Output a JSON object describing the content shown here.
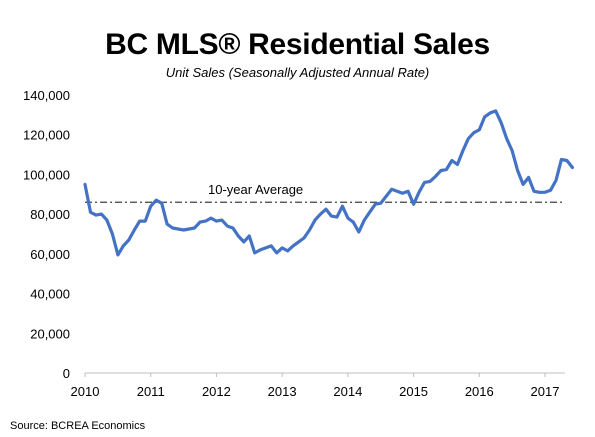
{
  "chart_data": {
    "type": "line",
    "title": "BC MLS® Residential Sales",
    "subtitle": "Unit Sales (Seasonally Adjusted Annual Rate)",
    "source": "Source: BCREA Economics",
    "xlabel": "",
    "ylabel": "",
    "xlim": [
      2010,
      2017.75
    ],
    "ylim": [
      0,
      140000
    ],
    "x_ticks": [
      "2010",
      "2011",
      "2012",
      "2013",
      "2014",
      "2015",
      "2016",
      "2017"
    ],
    "y_ticks": [
      "0",
      "20,000",
      "40,000",
      "60,000",
      "80,000",
      "100,000",
      "120,000",
      "140,000"
    ],
    "grid": false,
    "legend": "none",
    "colors": {
      "series": "#4472C4",
      "average": "#404040"
    },
    "reference_line": {
      "label": "10-year Average",
      "value": 86000
    },
    "series": [
      {
        "values": [
          [
            2010.0,
            95000
          ],
          [
            2010.083,
            81000
          ],
          [
            2010.167,
            79500
          ],
          [
            2010.25,
            80000
          ],
          [
            2010.333,
            77000
          ],
          [
            2010.417,
            70000
          ],
          [
            2010.5,
            59500
          ],
          [
            2010.583,
            64000
          ],
          [
            2010.667,
            67000
          ],
          [
            2010.75,
            72000
          ],
          [
            2010.833,
            76500
          ],
          [
            2010.917,
            76500
          ],
          [
            2011.0,
            84000
          ],
          [
            2011.083,
            87000
          ],
          [
            2011.167,
            85500
          ],
          [
            2011.25,
            75000
          ],
          [
            2011.333,
            73000
          ],
          [
            2011.417,
            72500
          ],
          [
            2011.5,
            72000
          ],
          [
            2011.583,
            72500
          ],
          [
            2011.667,
            73000
          ],
          [
            2011.75,
            76000
          ],
          [
            2011.833,
            76500
          ],
          [
            2011.917,
            78000
          ],
          [
            2012.0,
            76500
          ],
          [
            2012.083,
            77000
          ],
          [
            2012.167,
            74000
          ],
          [
            2012.25,
            73000
          ],
          [
            2012.333,
            69000
          ],
          [
            2012.417,
            66000
          ],
          [
            2012.5,
            69000
          ],
          [
            2012.583,
            60500
          ],
          [
            2012.667,
            62000
          ],
          [
            2012.75,
            63000
          ],
          [
            2012.833,
            64000
          ],
          [
            2012.917,
            60500
          ],
          [
            2013.0,
            63000
          ],
          [
            2013.083,
            61500
          ],
          [
            2013.167,
            64000
          ],
          [
            2013.25,
            66000
          ],
          [
            2013.333,
            68000
          ],
          [
            2013.417,
            72000
          ],
          [
            2013.5,
            77000
          ],
          [
            2013.583,
            80000
          ],
          [
            2013.667,
            82500
          ],
          [
            2013.75,
            79000
          ],
          [
            2013.833,
            78500
          ],
          [
            2013.917,
            84000
          ],
          [
            2014.0,
            78000
          ],
          [
            2014.083,
            76000
          ],
          [
            2014.167,
            71000
          ],
          [
            2014.25,
            77000
          ],
          [
            2014.333,
            81000
          ],
          [
            2014.417,
            85000
          ],
          [
            2014.5,
            85500
          ],
          [
            2014.583,
            89000
          ],
          [
            2014.667,
            92500
          ],
          [
            2014.75,
            91500
          ],
          [
            2014.833,
            90500
          ],
          [
            2014.917,
            91500
          ],
          [
            2015.0,
            85000
          ],
          [
            2015.083,
            91000
          ],
          [
            2015.167,
            96000
          ],
          [
            2015.25,
            96500
          ],
          [
            2015.333,
            99000
          ],
          [
            2015.417,
            102000
          ],
          [
            2015.5,
            102500
          ],
          [
            2015.583,
            107000
          ],
          [
            2015.667,
            105000
          ],
          [
            2015.75,
            112000
          ],
          [
            2015.833,
            118000
          ],
          [
            2015.917,
            121000
          ],
          [
            2016.0,
            122500
          ],
          [
            2016.083,
            129000
          ],
          [
            2016.167,
            131000
          ],
          [
            2016.25,
            132000
          ],
          [
            2016.333,
            126000
          ],
          [
            2016.417,
            118000
          ],
          [
            2016.5,
            112000
          ],
          [
            2016.583,
            102000
          ],
          [
            2016.667,
            95000
          ],
          [
            2016.75,
            98500
          ],
          [
            2016.833,
            91500
          ],
          [
            2016.917,
            91000
          ],
          [
            2017.0,
            91000
          ],
          [
            2017.083,
            92000
          ],
          [
            2017.167,
            97000
          ],
          [
            2017.25,
            107500
          ],
          [
            2017.333,
            107000
          ],
          [
            2017.417,
            103500
          ]
        ]
      }
    ]
  }
}
